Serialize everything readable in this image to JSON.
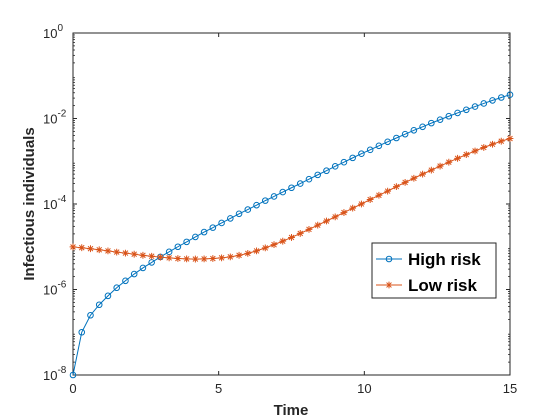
{
  "chart_data": {
    "type": "line",
    "title": "",
    "xlabel": "Time",
    "ylabel": "Infectious individuals",
    "xlim": [
      0,
      15
    ],
    "ylim": [
      1e-08,
      1
    ],
    "yscale": "log",
    "grid": false,
    "legend_position": "right-middle",
    "x_ticks": [
      {
        "value": 0,
        "label": "0"
      },
      {
        "value": 5,
        "label": "5"
      },
      {
        "value": 10,
        "label": "10"
      },
      {
        "value": 15,
        "label": "15"
      }
    ],
    "y_ticks": [
      {
        "value": 1e-08,
        "base": "10",
        "exp": "-8"
      },
      {
        "value": 1e-06,
        "base": "10",
        "exp": "-6"
      },
      {
        "value": 0.0001,
        "base": "10",
        "exp": "-4"
      },
      {
        "value": 0.01,
        "base": "10",
        "exp": "-2"
      },
      {
        "value": 1,
        "base": "10",
        "exp": "0"
      }
    ],
    "x": [
      0,
      0.3,
      0.6,
      0.9,
      1.2,
      1.5,
      1.8,
      2.1,
      2.4,
      2.7,
      3.0,
      3.3,
      3.6,
      3.9,
      4.2,
      4.5,
      4.8,
      5.1,
      5.4,
      5.7,
      6.0,
      6.3,
      6.6,
      6.9,
      7.2,
      7.5,
      7.8,
      8.1,
      8.4,
      8.7,
      9.0,
      9.3,
      9.6,
      9.9,
      10.2,
      10.5,
      10.8,
      11.1,
      11.4,
      11.7,
      12.0,
      12.3,
      12.6,
      12.9,
      13.2,
      13.5,
      13.8,
      14.1,
      14.4,
      14.7,
      15.0
    ],
    "series": [
      {
        "name": "High risk",
        "color": "#0072BD",
        "marker": "circle",
        "values": [
          1e-08,
          1e-07,
          2.5e-07,
          4.4e-07,
          7.1e-07,
          1.1e-06,
          1.6e-06,
          2.3e-06,
          3.2e-06,
          4.3e-06,
          5.8e-06,
          7.6e-06,
          1e-05,
          1.3e-05,
          1.7e-05,
          2.2e-05,
          2.8e-05,
          3.6e-05,
          4.6e-05,
          5.9e-05,
          7.4e-05,
          9.4e-05,
          0.00012,
          0.00015,
          0.00019,
          0.00024,
          0.0003,
          0.00038,
          0.00048,
          0.0006,
          0.00076,
          0.00095,
          0.0012,
          0.0015,
          0.00185,
          0.0023,
          0.00285,
          0.0035,
          0.0043,
          0.0053,
          0.0064,
          0.0078,
          0.0094,
          0.0113,
          0.0135,
          0.016,
          0.019,
          0.0225,
          0.0265,
          0.031,
          0.036
        ]
      },
      {
        "name": "Low risk",
        "color": "#D95319",
        "marker": "asterisk",
        "values": [
          9.9e-06,
          9.5e-06,
          9e-06,
          8.5e-06,
          8e-06,
          7.5e-06,
          7.1e-06,
          6.7e-06,
          6.3e-06,
          6e-06,
          5.7e-06,
          5.5e-06,
          5.3e-06,
          5.2e-06,
          5.15e-06,
          5.2e-06,
          5.3e-06,
          5.5e-06,
          5.8e-06,
          6.3e-06,
          7e-06,
          8e-06,
          9.4e-06,
          1.12e-05,
          1.35e-05,
          1.65e-05,
          2.05e-05,
          2.55e-05,
          3.2e-05,
          4e-05,
          5e-05,
          6.3e-05,
          8e-05,
          0.0001,
          0.000127,
          0.00016,
          0.0002,
          0.000255,
          0.00032,
          0.0004,
          0.0005,
          0.00062,
          0.00077,
          0.00095,
          0.00117,
          0.00143,
          0.00174,
          0.0021,
          0.0025,
          0.00295,
          0.0034
        ]
      }
    ]
  }
}
